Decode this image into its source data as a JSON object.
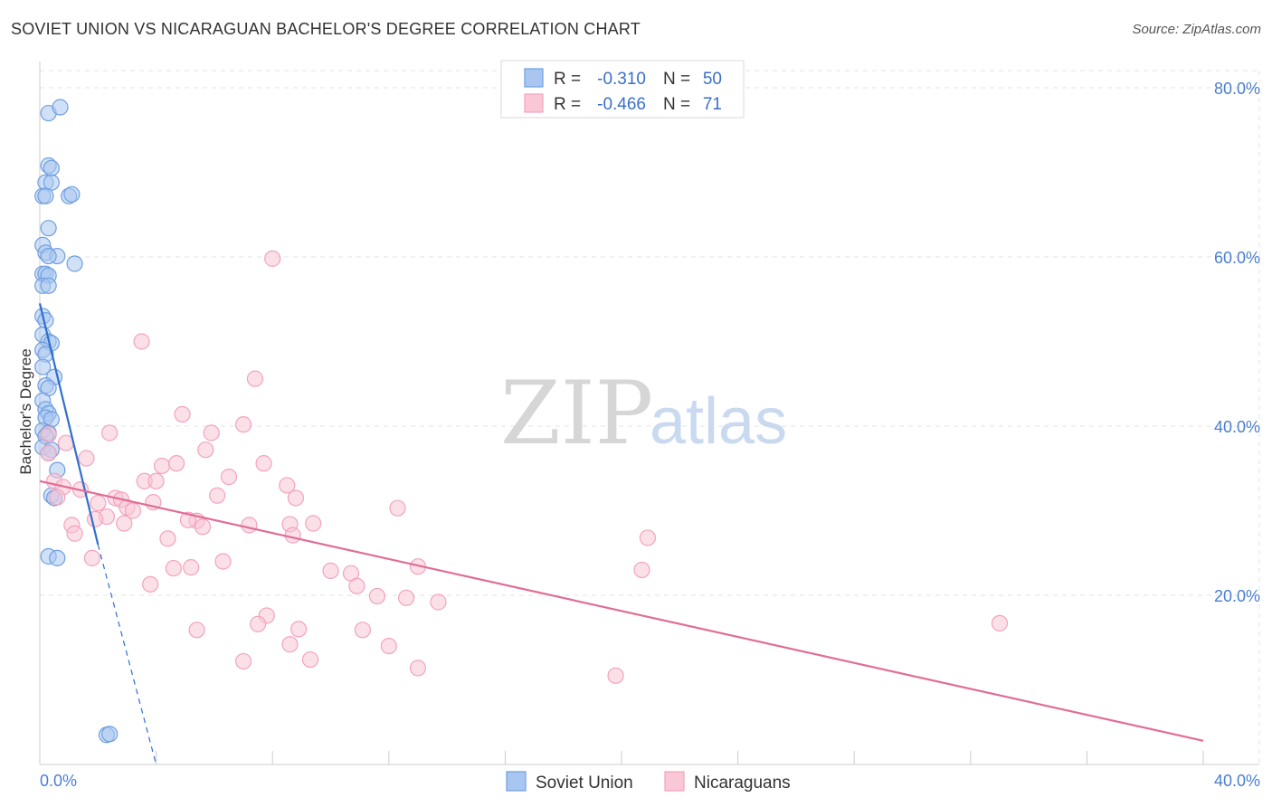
{
  "title": "SOVIET UNION VS NICARAGUAN BACHELOR'S DEGREE CORRELATION CHART",
  "source": "Source: ZipAtlas.com",
  "watermark": {
    "zip": "ZIP",
    "atlas": "atlas"
  },
  "chart_data": {
    "type": "scatter",
    "ylabel": "Bachelor's Degree",
    "xlim": [
      0,
      40
    ],
    "ylim": [
      0,
      80
    ],
    "y_ticks": [
      {
        "value": 20,
        "label": "20.0%"
      },
      {
        "value": 40,
        "label": "40.0%"
      },
      {
        "value": 60,
        "label": "60.0%"
      },
      {
        "value": 80,
        "label": "80.0%"
      }
    ],
    "x_tick_labels": {
      "min": "0.0%",
      "max": "40.0%"
    },
    "x_minor_ticks": [
      4,
      8,
      12,
      16,
      20,
      24,
      28,
      32,
      36
    ],
    "legend_box": {
      "rows": [
        {
          "r_label": "R =",
          "r_value": "-0.310",
          "n_label": "N =",
          "n_value": "50"
        },
        {
          "r_label": "R =",
          "r_value": "-0.466",
          "n_label": "N =",
          "n_value": "71"
        }
      ]
    },
    "series": [
      {
        "name": "Soviet Union",
        "color": "#6f9fe0",
        "fill": "#a9c6f0",
        "line_color": "#2f6fcf",
        "trend": {
          "x0": 0,
          "y0": 54.5,
          "x1": 2.0,
          "y1": 26.0,
          "dash_to_x": 4.0,
          "dash_to_y": -3.0
        },
        "points": [
          [
            0.3,
            77.0
          ],
          [
            0.7,
            77.7
          ],
          [
            0.3,
            70.8
          ],
          [
            0.4,
            70.5
          ],
          [
            0.2,
            68.8
          ],
          [
            0.4,
            68.8
          ],
          [
            0.1,
            67.2
          ],
          [
            0.2,
            67.2
          ],
          [
            1.0,
            67.2
          ],
          [
            1.1,
            67.4
          ],
          [
            0.3,
            63.4
          ],
          [
            0.1,
            61.4
          ],
          [
            0.2,
            60.5
          ],
          [
            0.6,
            60.1
          ],
          [
            0.3,
            60.1
          ],
          [
            1.2,
            59.2
          ],
          [
            0.1,
            58.0
          ],
          [
            0.2,
            58.0
          ],
          [
            0.3,
            57.8
          ],
          [
            0.1,
            56.6
          ],
          [
            0.3,
            56.6
          ],
          [
            0.1,
            53.0
          ],
          [
            0.2,
            52.5
          ],
          [
            0.1,
            50.8
          ],
          [
            0.3,
            50.0
          ],
          [
            0.4,
            49.8
          ],
          [
            0.1,
            49.0
          ],
          [
            0.2,
            48.5
          ],
          [
            0.1,
            47.0
          ],
          [
            0.5,
            45.8
          ],
          [
            0.2,
            44.8
          ],
          [
            0.3,
            44.5
          ],
          [
            0.1,
            43.0
          ],
          [
            0.2,
            42.0
          ],
          [
            0.3,
            41.5
          ],
          [
            0.2,
            41.0
          ],
          [
            0.4,
            40.8
          ],
          [
            0.1,
            39.5
          ],
          [
            0.3,
            39.2
          ],
          [
            0.2,
            38.8
          ],
          [
            0.1,
            37.5
          ],
          [
            0.4,
            37.2
          ],
          [
            0.3,
            36.8
          ],
          [
            0.6,
            34.8
          ],
          [
            0.4,
            31.8
          ],
          [
            0.5,
            31.5
          ],
          [
            0.3,
            24.6
          ],
          [
            0.6,
            24.4
          ],
          [
            2.3,
            3.5
          ],
          [
            2.4,
            3.6
          ]
        ]
      },
      {
        "name": "Nicaraguans",
        "color": "#f2a3bd",
        "fill": "#f9c7d6",
        "line_color": "#e06d98",
        "trend": {
          "x0": 0,
          "y0": 33.5,
          "x1": 40,
          "y1": 2.8
        },
        "points": [
          [
            8.0,
            59.8
          ],
          [
            3.5,
            50.0
          ],
          [
            7.4,
            45.6
          ],
          [
            4.9,
            41.4
          ],
          [
            7.0,
            40.2
          ],
          [
            2.4,
            39.2
          ],
          [
            5.9,
            39.2
          ],
          [
            0.3,
            39.0
          ],
          [
            0.9,
            38.0
          ],
          [
            0.3,
            36.8
          ],
          [
            5.7,
            37.2
          ],
          [
            1.6,
            36.2
          ],
          [
            4.2,
            35.3
          ],
          [
            4.7,
            35.6
          ],
          [
            7.7,
            35.6
          ],
          [
            6.5,
            34.0
          ],
          [
            3.6,
            33.5
          ],
          [
            4.0,
            33.5
          ],
          [
            0.5,
            33.5
          ],
          [
            8.5,
            33.0
          ],
          [
            0.8,
            32.8
          ],
          [
            1.4,
            32.5
          ],
          [
            2.6,
            31.5
          ],
          [
            2.8,
            31.3
          ],
          [
            6.1,
            31.8
          ],
          [
            8.8,
            31.5
          ],
          [
            3.9,
            31.0
          ],
          [
            0.6,
            31.6
          ],
          [
            2.0,
            30.9
          ],
          [
            3.0,
            30.4
          ],
          [
            3.2,
            30.0
          ],
          [
            12.3,
            30.3
          ],
          [
            2.3,
            29.3
          ],
          [
            1.9,
            29.0
          ],
          [
            5.4,
            28.8
          ],
          [
            5.1,
            28.9
          ],
          [
            2.9,
            28.5
          ],
          [
            7.2,
            28.3
          ],
          [
            5.6,
            28.1
          ],
          [
            8.6,
            28.4
          ],
          [
            9.4,
            28.5
          ],
          [
            1.1,
            28.3
          ],
          [
            1.2,
            27.3
          ],
          [
            8.7,
            27.1
          ],
          [
            4.4,
            26.7
          ],
          [
            20.9,
            26.8
          ],
          [
            1.8,
            24.4
          ],
          [
            6.3,
            24.0
          ],
          [
            4.6,
            23.2
          ],
          [
            5.2,
            23.3
          ],
          [
            13.0,
            23.4
          ],
          [
            10.0,
            22.9
          ],
          [
            10.7,
            22.6
          ],
          [
            3.8,
            21.3
          ],
          [
            10.9,
            21.1
          ],
          [
            11.6,
            19.9
          ],
          [
            12.6,
            19.7
          ],
          [
            13.7,
            19.2
          ],
          [
            20.7,
            23.0
          ],
          [
            33.0,
            16.7
          ],
          [
            7.8,
            17.6
          ],
          [
            7.5,
            16.6
          ],
          [
            5.4,
            15.9
          ],
          [
            8.9,
            16.0
          ],
          [
            11.1,
            15.9
          ],
          [
            8.6,
            14.2
          ],
          [
            12.0,
            14.0
          ],
          [
            7.0,
            12.2
          ],
          [
            9.3,
            12.4
          ],
          [
            13.0,
            11.4
          ],
          [
            19.8,
            10.5
          ]
        ]
      }
    ]
  }
}
